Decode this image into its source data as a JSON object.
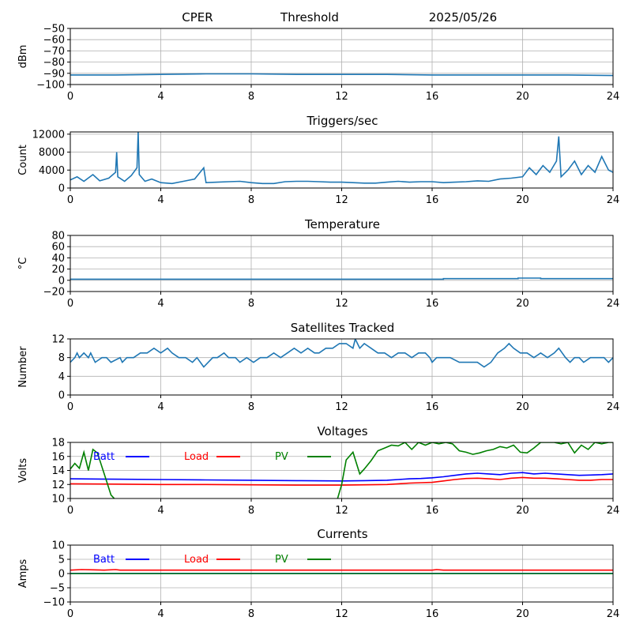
{
  "header": {
    "site": "CPER",
    "mode": "Threshold",
    "date": "2025/05/26"
  },
  "chart_data": [
    {
      "id": "threshold",
      "type": "line",
      "title": "",
      "ylabel": "dBm",
      "xlim": [
        0,
        24
      ],
      "ylim": [
        -100,
        -50
      ],
      "xticks": [
        0,
        4,
        8,
        12,
        16,
        20,
        24
      ],
      "yticks": [
        -50,
        -60,
        -70,
        -80,
        -90,
        -100
      ],
      "grid": true,
      "series": [
        {
          "color": "#1f77b4",
          "x": [
            0,
            2,
            4,
            6,
            8,
            10,
            12,
            14,
            16,
            18,
            20,
            22,
            24
          ],
          "y": [
            -91.5,
            -91.5,
            -91,
            -90.5,
            -90.5,
            -91,
            -91,
            -91,
            -91.5,
            -91.5,
            -91.5,
            -91.5,
            -92
          ]
        }
      ]
    },
    {
      "id": "triggers",
      "type": "line",
      "title": "Triggers/sec",
      "ylabel": "Count",
      "xlim": [
        0,
        24
      ],
      "ylim": [
        0,
        12500
      ],
      "xticks": [
        0,
        4,
        8,
        12,
        16,
        20,
        24
      ],
      "yticks": [
        0,
        4000,
        8000,
        12000
      ],
      "grid": true,
      "series": [
        {
          "color": "#1f77b4",
          "x": [
            0,
            0.3,
            0.6,
            1,
            1.3,
            1.7,
            2,
            2.05,
            2.1,
            2.4,
            2.7,
            2.95,
            3.0,
            3.05,
            3.3,
            3.6,
            4,
            4.5,
            5,
            5.5,
            5.9,
            6,
            6.5,
            7,
            7.5,
            8,
            8.5,
            9,
            9.5,
            10,
            10.5,
            11,
            11.5,
            12,
            12.5,
            13,
            13.5,
            14,
            14.5,
            15,
            15.5,
            16,
            16.5,
            17,
            17.5,
            18,
            18.5,
            19,
            19.5,
            20,
            20.3,
            20.6,
            20.9,
            21.2,
            21.5,
            21.6,
            21.7,
            22,
            22.3,
            22.6,
            22.9,
            23.2,
            23.5,
            23.8,
            24
          ],
          "y": [
            1800,
            2500,
            1500,
            3000,
            1600,
            2200,
            3500,
            8000,
            2500,
            1500,
            2800,
            4500,
            12500,
            3000,
            1500,
            2000,
            1200,
            1000,
            1500,
            2000,
            4500,
            1200,
            1300,
            1400,
            1500,
            1200,
            1000,
            1000,
            1400,
            1500,
            1500,
            1400,
            1300,
            1300,
            1200,
            1100,
            1100,
            1300,
            1500,
            1300,
            1400,
            1400,
            1200,
            1300,
            1400,
            1600,
            1500,
            2000,
            2200,
            2500,
            4500,
            3000,
            5000,
            3500,
            6000,
            11500,
            2500,
            4000,
            6000,
            3000,
            5000,
            3500,
            7000,
            4000,
            3500
          ]
        }
      ]
    },
    {
      "id": "temperature",
      "type": "line",
      "title": "Temperature",
      "ylabel": "°C",
      "xlim": [
        0,
        24
      ],
      "ylim": [
        -20,
        80
      ],
      "xticks": [
        0,
        4,
        8,
        12,
        16,
        20,
        24
      ],
      "yticks": [
        80,
        60,
        40,
        20,
        0,
        -20
      ],
      "grid": true,
      "series": [
        {
          "color": "#1f77b4",
          "x": [
            0,
            16.5,
            16.5,
            19.8,
            19.8,
            20.8,
            20.8,
            24
          ],
          "y": [
            2,
            2,
            3,
            3,
            4,
            4,
            3,
            3
          ]
        }
      ]
    },
    {
      "id": "satellites",
      "type": "line",
      "title": "Satellites Tracked",
      "ylabel": "Number",
      "xlim": [
        0,
        24
      ],
      "ylim": [
        0,
        12
      ],
      "xticks": [
        0,
        4,
        8,
        12,
        16,
        20,
        24
      ],
      "yticks": [
        0,
        4,
        8,
        12
      ],
      "grid": true,
      "series": [
        {
          "color": "#1f77b4",
          "x": [
            0,
            0.2,
            0.3,
            0.4,
            0.6,
            0.8,
            0.9,
            1.0,
            1.1,
            1.4,
            1.6,
            1.8,
            2.2,
            2.3,
            2.5,
            2.8,
            3.1,
            3.4,
            3.7,
            4.0,
            4.3,
            4.5,
            4.8,
            5.1,
            5.4,
            5.6,
            5.9,
            6.1,
            6.3,
            6.5,
            6.8,
            7.0,
            7.3,
            7.5,
            7.8,
            8.1,
            8.4,
            8.7,
            9.0,
            9.3,
            9.6,
            9.9,
            10.2,
            10.5,
            10.8,
            11.0,
            11.3,
            11.6,
            11.9,
            12.2,
            12.5,
            12.6,
            12.7,
            12.8,
            13.0,
            13.3,
            13.6,
            13.9,
            14.2,
            14.5,
            14.8,
            15.1,
            15.4,
            15.7,
            15.9,
            16.0,
            16.2,
            16.4,
            16.8,
            17.2,
            17.6,
            18.0,
            18.3,
            18.6,
            18.9,
            19.2,
            19.4,
            19.6,
            19.9,
            20.2,
            20.5,
            20.8,
            21.1,
            21.4,
            21.6,
            21.9,
            22.1,
            22.3,
            22.5,
            22.7,
            23.0,
            23.3,
            23.6,
            23.8,
            24
          ],
          "y": [
            7,
            8,
            9,
            8,
            9,
            8,
            9,
            8,
            7,
            8,
            8,
            7,
            8,
            7,
            8,
            8,
            9,
            9,
            10,
            9,
            10,
            9,
            8,
            8,
            7,
            8,
            6,
            7,
            8,
            8,
            9,
            8,
            8,
            7,
            8,
            7,
            8,
            8,
            9,
            8,
            9,
            10,
            9,
            10,
            9,
            9,
            10,
            10,
            11,
            11,
            10,
            12,
            11,
            10,
            11,
            10,
            9,
            9,
            8,
            9,
            9,
            8,
            9,
            9,
            8,
            7,
            8,
            8,
            8,
            7,
            7,
            7,
            6,
            7,
            9,
            10,
            11,
            10,
            9,
            9,
            8,
            9,
            8,
            9,
            10,
            8,
            7,
            8,
            8,
            7,
            8,
            8,
            8,
            7,
            8
          ]
        }
      ]
    },
    {
      "id": "voltages",
      "type": "line",
      "title": "Voltages",
      "ylabel": "Volts",
      "xlim": [
        0,
        24
      ],
      "ylim": [
        10,
        18
      ],
      "xticks": [
        0,
        4,
        8,
        12,
        16,
        20,
        24
      ],
      "yticks": [
        10,
        12,
        14,
        16,
        18
      ],
      "grid": true,
      "legend": "top-left",
      "series": [
        {
          "name": "Batt",
          "color": "#0000ff",
          "x": [
            0,
            2,
            4,
            6,
            8,
            10,
            12,
            13,
            14,
            14.5,
            15,
            15.5,
            16,
            16.5,
            17,
            17.5,
            18,
            18.5,
            19,
            19.5,
            20,
            20.5,
            21,
            21.5,
            22,
            22.5,
            23,
            23.5,
            24
          ],
          "y": [
            12.8,
            12.75,
            12.7,
            12.65,
            12.6,
            12.55,
            12.5,
            12.55,
            12.6,
            12.7,
            12.8,
            12.85,
            12.95,
            13.1,
            13.3,
            13.5,
            13.6,
            13.5,
            13.4,
            13.6,
            13.7,
            13.5,
            13.6,
            13.5,
            13.4,
            13.3,
            13.35,
            13.4,
            13.5
          ]
        },
        {
          "name": "Load",
          "color": "#ff0000",
          "x": [
            0,
            2,
            4,
            6,
            8,
            10,
            12,
            13,
            14,
            14.5,
            15,
            15.5,
            16,
            16.5,
            17,
            17.5,
            18,
            18.5,
            19,
            19.5,
            20,
            20.5,
            21,
            21.5,
            22,
            22.5,
            23,
            23.5,
            24
          ],
          "y": [
            12.1,
            12.05,
            12.0,
            12.0,
            11.95,
            11.9,
            11.9,
            11.95,
            12.0,
            12.1,
            12.2,
            12.25,
            12.3,
            12.5,
            12.7,
            12.85,
            12.9,
            12.8,
            12.7,
            12.9,
            13.0,
            12.9,
            12.9,
            12.8,
            12.7,
            12.6,
            12.6,
            12.7,
            12.7
          ]
        },
        {
          "name": "PV",
          "color": "#008000",
          "x": [
            0,
            0.2,
            0.4,
            0.6,
            0.8,
            1.0,
            1.2,
            1.4,
            1.6,
            1.8,
            2.0,
            11.8,
            12.0,
            12.2,
            12.5,
            12.8,
            13.0,
            13.3,
            13.6,
            13.9,
            14.2,
            14.5,
            14.8,
            15.1,
            15.4,
            15.7,
            16.0,
            16.3,
            16.6,
            16.9,
            17.2,
            17.5,
            17.8,
            18.1,
            18.4,
            18.7,
            19.0,
            19.3,
            19.6,
            19.9,
            20.2,
            20.5,
            20.8,
            21.1,
            21.4,
            21.7,
            22.0,
            22.3,
            22.6,
            22.9,
            23.2,
            23.5,
            23.8,
            24
          ],
          "y": [
            14.2,
            15.0,
            14.3,
            16.6,
            14.0,
            17.0,
            16.5,
            14.5,
            12.5,
            10.5,
            9.8,
            9.8,
            12.0,
            15.5,
            16.6,
            13.5,
            14.2,
            15.4,
            16.8,
            17.2,
            17.6,
            17.5,
            18.0,
            17.0,
            18.0,
            17.6,
            18.0,
            17.8,
            18.0,
            17.8,
            16.8,
            16.6,
            16.3,
            16.5,
            16.8,
            17.0,
            17.4,
            17.2,
            17.6,
            16.6,
            16.5,
            17.2,
            18.0,
            18.0,
            18.0,
            17.8,
            18.0,
            16.5,
            17.6,
            17.0,
            18.0,
            17.8,
            18.0,
            18.0
          ]
        }
      ]
    },
    {
      "id": "currents",
      "type": "line",
      "title": "Currents",
      "ylabel": "Amps",
      "xlim": [
        0,
        24
      ],
      "ylim": [
        -10,
        10
      ],
      "xticks": [
        0,
        4,
        8,
        12,
        16,
        20,
        24
      ],
      "yticks": [
        10,
        5,
        0,
        -5,
        -10
      ],
      "grid": true,
      "legend": "top-left",
      "series": [
        {
          "name": "Batt",
          "color": "#0000ff",
          "x": [
            0,
            24
          ],
          "y": [
            0.05,
            0.05
          ]
        },
        {
          "name": "Load",
          "color": "#ff0000",
          "x": [
            0,
            0.5,
            1.0,
            1.5,
            2.0,
            2.2,
            2.5,
            4,
            8,
            12,
            16,
            16.2,
            16.5,
            20,
            24
          ],
          "y": [
            1.2,
            1.4,
            1.3,
            1.2,
            1.4,
            1.2,
            1.2,
            1.2,
            1.2,
            1.2,
            1.2,
            1.4,
            1.2,
            1.2,
            1.2
          ]
        },
        {
          "name": "PV",
          "color": "#008000",
          "x": [
            0,
            24
          ],
          "y": [
            0,
            0
          ]
        }
      ]
    }
  ]
}
